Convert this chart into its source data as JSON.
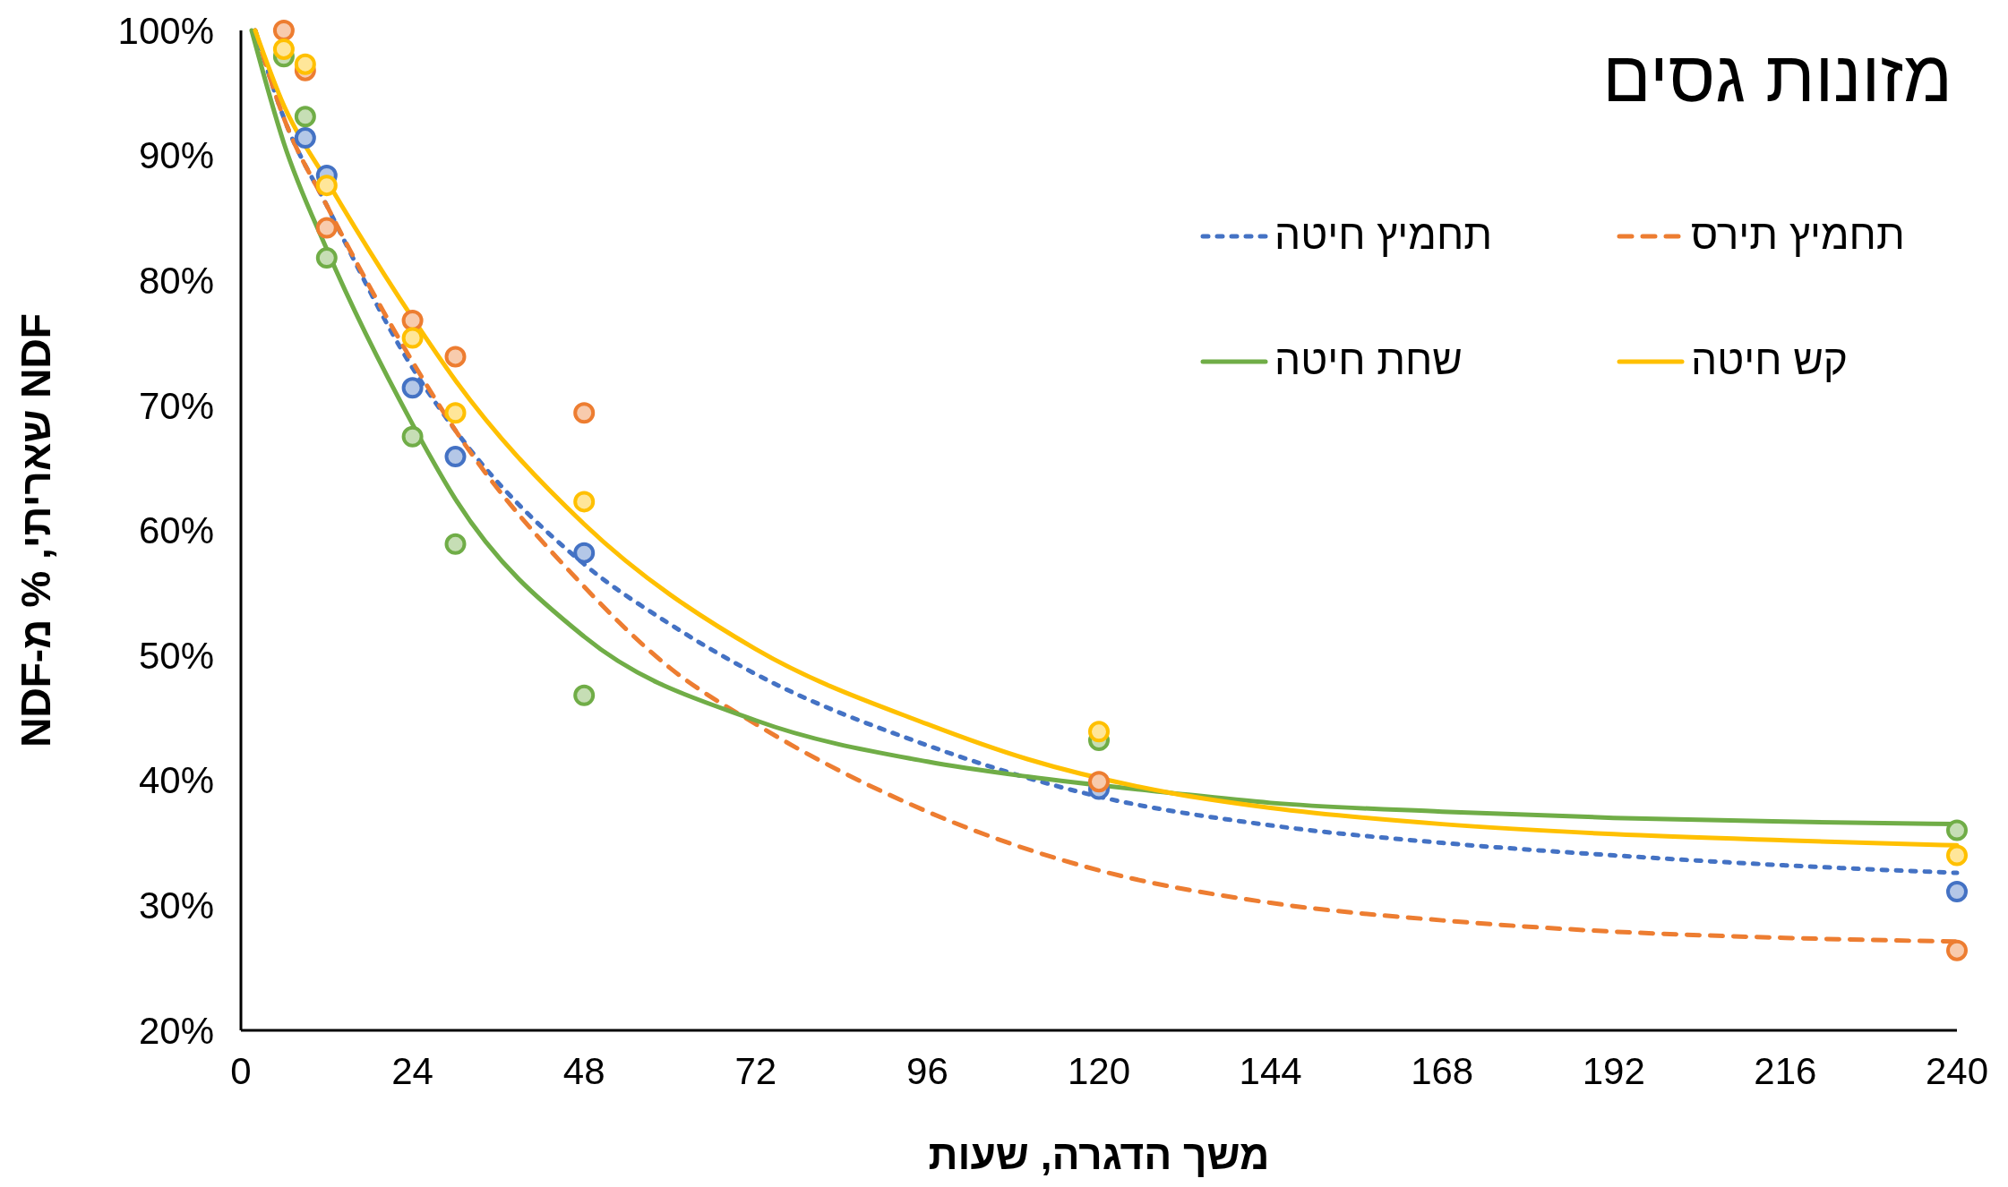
{
  "chart_data": {
    "type": "line",
    "title": "מזונות גסים",
    "xlabel": "משך הדגרה, שעות",
    "ylabel": "NDF שאריתי, % מ-NDF",
    "xlim": [
      0,
      240
    ],
    "xticks": [
      0,
      24,
      48,
      72,
      96,
      120,
      144,
      168,
      192,
      216,
      240
    ],
    "ylim": [
      20,
      100
    ],
    "yticks": [
      {
        "value": 20,
        "label": "20%"
      },
      {
        "value": 30,
        "label": "30%"
      },
      {
        "value": 40,
        "label": "40%"
      },
      {
        "value": 50,
        "label": "50%"
      },
      {
        "value": 60,
        "label": "60%"
      },
      {
        "value": 70,
        "label": "70%"
      },
      {
        "value": 80,
        "label": "80%"
      },
      {
        "value": 90,
        "label": "90%"
      },
      {
        "value": 100,
        "label": "100%"
      }
    ],
    "grid": false,
    "legend": "top right",
    "series": [
      {
        "name": "תחמיץ חיטה",
        "color": "#4472c4",
        "line_style": "dashed",
        "marker": "none",
        "x": [
          2,
          6,
          12,
          24,
          30,
          48,
          60,
          72,
          96,
          120,
          144,
          168,
          192,
          216,
          240
        ],
        "values": [
          100,
          93,
          86,
          73,
          68,
          57.3,
          52.5,
          48.5,
          42.8,
          38.7,
          36.4,
          35,
          34,
          33.2,
          32.6
        ]
      },
      {
        "name": "תחמיץ תירס",
        "color": "#ed7d31",
        "line_style": "dashed",
        "marker": "none",
        "x": [
          2,
          6,
          12,
          24,
          30,
          48,
          60,
          72,
          96,
          120,
          144,
          168,
          192,
          216,
          240
        ],
        "values": [
          100,
          93,
          86,
          73.5,
          68,
          55.5,
          49,
          44.5,
          37.5,
          32.8,
          30.2,
          28.8,
          27.9,
          27.4,
          27.1
        ]
      },
      {
        "name": "שחת חיטה",
        "color": "#70ad47",
        "line_style": "solid",
        "marker": "none",
        "x": [
          1.5,
          6,
          12,
          24,
          30,
          48,
          72,
          96,
          110,
          130,
          144,
          168,
          192,
          216,
          240
        ],
        "values": [
          100,
          91,
          82.5,
          68.5,
          62.5,
          51.5,
          44.8,
          41.5,
          40.3,
          39,
          38.2,
          37.5,
          37,
          36.7,
          36.5
        ]
      },
      {
        "name": "קש חיטה",
        "color": "#ffc000",
        "line_style": "solid",
        "marker": "none",
        "x": [
          2,
          6,
          12,
          24,
          30,
          48,
          72,
          96,
          110,
          130,
          144,
          168,
          192,
          216,
          240
        ],
        "values": [
          100,
          94,
          88,
          77,
          72,
          60.5,
          50.5,
          44.5,
          41.7,
          39,
          37.8,
          36.5,
          35.7,
          35.2,
          34.8
        ]
      },
      {
        "type": "scatter",
        "color": "#4472c4",
        "marker": "circle",
        "x": [
          9,
          12,
          24,
          30,
          48,
          120,
          240
        ],
        "values": [
          91.4,
          88.4,
          71.4,
          65.9,
          58.2,
          39.3,
          31.1
        ]
      },
      {
        "type": "scatter",
        "color": "#ed7d31",
        "marker": "circle",
        "x": [
          6,
          9,
          12,
          24,
          30,
          48,
          120,
          240
        ],
        "values": [
          100,
          96.8,
          84.2,
          76.8,
          73.9,
          69.4,
          39.9,
          26.4
        ]
      },
      {
        "type": "scatter",
        "color": "#70ad47",
        "marker": "circle",
        "x": [
          6,
          9,
          12,
          24,
          30,
          48,
          120,
          240
        ],
        "values": [
          97.9,
          93.1,
          81.8,
          67.5,
          58.9,
          46.8,
          43.2,
          36
        ]
      },
      {
        "type": "scatter",
        "color": "#ffc000",
        "marker": "circle",
        "x": [
          6,
          9,
          12,
          24,
          30,
          48,
          120,
          240
        ],
        "values": [
          98.5,
          97.3,
          87.6,
          75.4,
          69.4,
          62.3,
          43.9,
          34
        ]
      }
    ]
  }
}
